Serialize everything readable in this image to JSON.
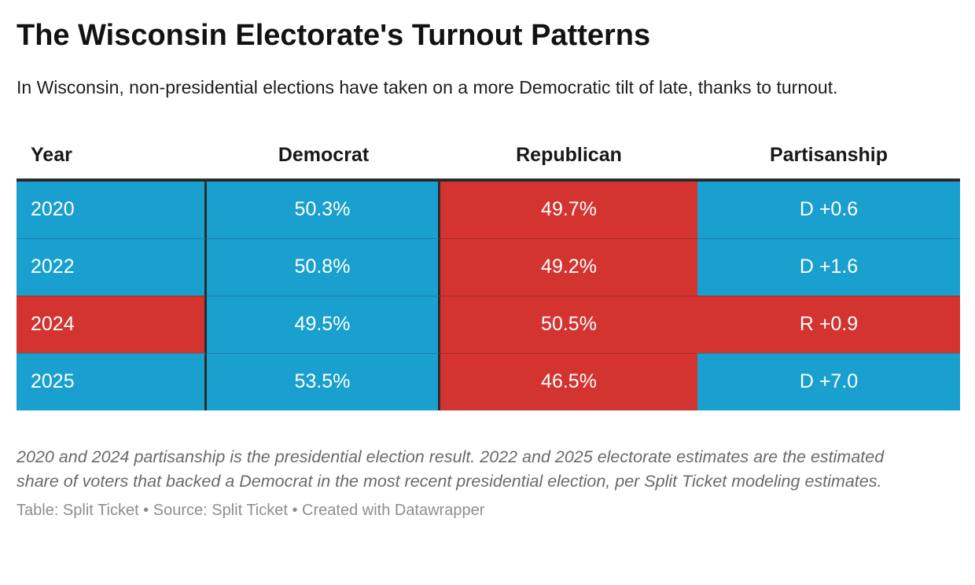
{
  "header": {
    "title": "The Wisconsin Electorate's Turnout Patterns",
    "subtitle": "In Wisconsin, non-presidential elections have taken on a more Democratic tilt of late, thanks to turnout."
  },
  "colors": {
    "democrat": "#1AA0CE",
    "republican": "#D33430",
    "rule": "#2B2B2B"
  },
  "table": {
    "columns": [
      {
        "label": "Year"
      },
      {
        "label": "Democrat"
      },
      {
        "label": "Republican"
      },
      {
        "label": "Partisanship"
      }
    ],
    "rows": [
      {
        "cells": [
          {
            "text": "2020",
            "party": "democrat"
          },
          {
            "text": "50.3%",
            "party": "democrat"
          },
          {
            "text": "49.7%",
            "party": "republican"
          },
          {
            "text": "D +0.6",
            "party": "democrat"
          }
        ]
      },
      {
        "cells": [
          {
            "text": "2022",
            "party": "democrat"
          },
          {
            "text": "50.8%",
            "party": "democrat"
          },
          {
            "text": "49.2%",
            "party": "republican"
          },
          {
            "text": "D +1.6",
            "party": "democrat"
          }
        ]
      },
      {
        "cells": [
          {
            "text": "2024",
            "party": "republican"
          },
          {
            "text": "49.5%",
            "party": "democrat"
          },
          {
            "text": "50.5%",
            "party": "republican"
          },
          {
            "text": "R +0.9",
            "party": "republican"
          }
        ]
      },
      {
        "cells": [
          {
            "text": "2025",
            "party": "democrat"
          },
          {
            "text": "53.5%",
            "party": "democrat"
          },
          {
            "text": "46.5%",
            "party": "republican"
          },
          {
            "text": "D +7.0",
            "party": "democrat"
          }
        ]
      }
    ]
  },
  "footer": {
    "note": "2020 and 2024 partisanship is the presidential election result. 2022 and 2025 electorate estimates are the estimated share of voters that backed a Democrat in the most recent presidential election, per Split Ticket modeling estimates.",
    "attribution": "Table: Split Ticket • Source: Split Ticket • Created with Datawrapper"
  },
  "chart_data": {
    "type": "table",
    "title": "The Wisconsin Electorate's Turnout Patterns",
    "subtitle": "In Wisconsin, non-presidential elections have taken on a more Democratic tilt of late, thanks to turnout.",
    "columns": [
      "Year",
      "Democrat",
      "Republican",
      "Partisanship"
    ],
    "rows": [
      [
        "2020",
        "50.3%",
        "49.7%",
        "D +0.6"
      ],
      [
        "2022",
        "50.8%",
        "49.2%",
        "D +1.6"
      ],
      [
        "2024",
        "49.5%",
        "50.5%",
        "R +0.9"
      ],
      [
        "2025",
        "53.5%",
        "46.5%",
        "D +7.0"
      ]
    ],
    "cell_party_coloring": [
      [
        "D",
        "D",
        "R",
        "D"
      ],
      [
        "D",
        "D",
        "R",
        "D"
      ],
      [
        "R",
        "D",
        "R",
        "R"
      ],
      [
        "D",
        "D",
        "R",
        "D"
      ]
    ],
    "party_colors": {
      "D": "#1AA0CE",
      "R": "#D33430"
    },
    "note": "2020 and 2024 partisanship is the presidential election result. 2022 and 2025 electorate estimates are the estimated share of voters that backed a Democrat in the most recent presidential election, per Split Ticket modeling estimates.",
    "source": "Table: Split Ticket • Source: Split Ticket • Created with Datawrapper"
  }
}
